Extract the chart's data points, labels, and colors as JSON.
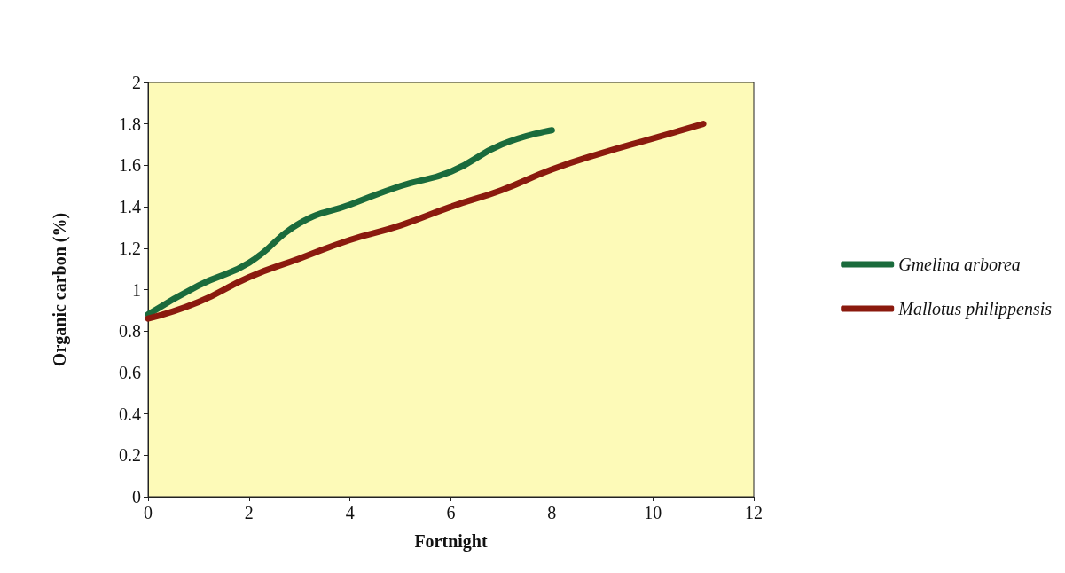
{
  "chart_data": {
    "type": "line",
    "xlabel": "Fortnight",
    "ylabel": "Organic carbon (%)",
    "x": [
      0,
      1,
      2,
      3,
      4,
      5,
      6,
      7,
      8,
      9,
      10,
      11
    ],
    "series": [
      {
        "name": "Gmelina arborea",
        "color": "#1a6b3c",
        "values": [
          0.88,
          1.02,
          1.13,
          1.32,
          1.41,
          1.5,
          1.57,
          1.7,
          1.77,
          null,
          null,
          null
        ]
      },
      {
        "name": "Mallotus philippensis",
        "color": "#8b1a0e",
        "values": [
          0.86,
          0.94,
          1.06,
          1.15,
          1.24,
          1.31,
          1.4,
          1.48,
          1.58,
          1.66,
          1.73,
          1.8
        ]
      }
    ],
    "xlim": [
      0,
      12
    ],
    "xticks": [
      0,
      2,
      4,
      6,
      8,
      10,
      12
    ],
    "ylim": [
      0,
      2
    ],
    "yticks": [
      0,
      0.2,
      0.4,
      0.6,
      0.8,
      1,
      1.2,
      1.4,
      1.6,
      1.8,
      2
    ],
    "grid": false,
    "legend": "right",
    "marker": "none",
    "line_style": "solid"
  }
}
